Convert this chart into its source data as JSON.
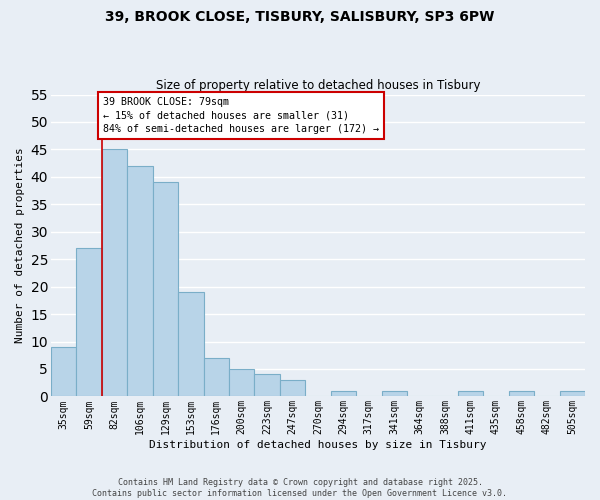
{
  "title": "39, BROOK CLOSE, TISBURY, SALISBURY, SP3 6PW",
  "subtitle": "Size of property relative to detached houses in Tisbury",
  "xlabel": "Distribution of detached houses by size in Tisbury",
  "ylabel": "Number of detached properties",
  "bar_color": "#b8d4e8",
  "bar_edge_color": "#7aaec8",
  "background_color": "#e8eef5",
  "grid_color": "#ffffff",
  "annotation_line_color": "#cc0000",
  "categories": [
    "35sqm",
    "59sqm",
    "82sqm",
    "106sqm",
    "129sqm",
    "153sqm",
    "176sqm",
    "200sqm",
    "223sqm",
    "247sqm",
    "270sqm",
    "294sqm",
    "317sqm",
    "341sqm",
    "364sqm",
    "388sqm",
    "411sqm",
    "435sqm",
    "458sqm",
    "482sqm",
    "505sqm"
  ],
  "values": [
    9,
    27,
    45,
    42,
    39,
    19,
    7,
    5,
    4,
    3,
    0,
    1,
    0,
    1,
    0,
    0,
    1,
    0,
    1,
    0,
    1
  ],
  "ylim": [
    0,
    55
  ],
  "yticks": [
    0,
    5,
    10,
    15,
    20,
    25,
    30,
    35,
    40,
    45,
    50,
    55
  ],
  "marker_bin_index": 2,
  "annotation_title": "39 BROOK CLOSE: 79sqm",
  "annotation_line1": "← 15% of detached houses are smaller (31)",
  "annotation_line2": "84% of semi-detached houses are larger (172) →",
  "footer_line1": "Contains HM Land Registry data © Crown copyright and database right 2025.",
  "footer_line2": "Contains public sector information licensed under the Open Government Licence v3.0."
}
